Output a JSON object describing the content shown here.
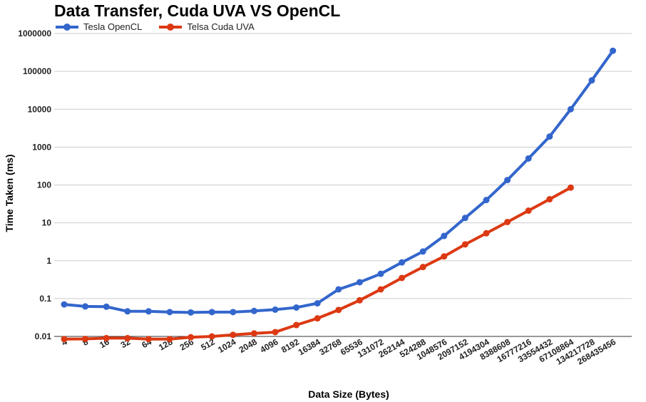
{
  "chart_data": {
    "type": "line",
    "title": "Data Transfer, Cuda UVA VS OpenCL",
    "xlabel": "Data Size (Bytes)",
    "ylabel": "Time Taken (ms)",
    "yscale": "log",
    "ylim": [
      0.01,
      1000000
    ],
    "yticks": [
      "0.01",
      "0.1",
      "1",
      "10",
      "100",
      "1000",
      "10000",
      "100000",
      "1000000"
    ],
    "grid": true,
    "legend_position": "top-left",
    "categories": [
      "4",
      "8",
      "16",
      "32",
      "64",
      "128",
      "256",
      "512",
      "1024",
      "2048",
      "4096",
      "8192",
      "16384",
      "32768",
      "65536",
      "131072",
      "262144",
      "524288",
      "1048576",
      "2097152",
      "4194304",
      "8388608",
      "16777216",
      "33554432",
      "67108864",
      "134217728",
      "268435456"
    ],
    "series": [
      {
        "name": "Tesla OpenCL",
        "color": "#3366cc",
        "values": [
          0.07,
          0.062,
          0.061,
          0.046,
          0.046,
          0.044,
          0.043,
          0.044,
          0.044,
          0.047,
          0.051,
          0.058,
          0.075,
          0.175,
          0.27,
          0.45,
          0.9,
          1.75,
          4.5,
          13.5,
          40,
          135,
          500,
          1900,
          10000,
          58000,
          350000
        ]
      },
      {
        "name": "Telsa Cuda UVA",
        "color": "#dc3912",
        "values": [
          0.0085,
          0.0086,
          0.009,
          0.009,
          0.0085,
          0.0085,
          0.0095,
          0.01,
          0.011,
          0.012,
          0.013,
          0.02,
          0.03,
          0.05,
          0.09,
          0.175,
          0.35,
          0.68,
          1.3,
          2.7,
          5.3,
          10.5,
          21,
          42,
          85,
          null,
          null
        ]
      }
    ]
  }
}
